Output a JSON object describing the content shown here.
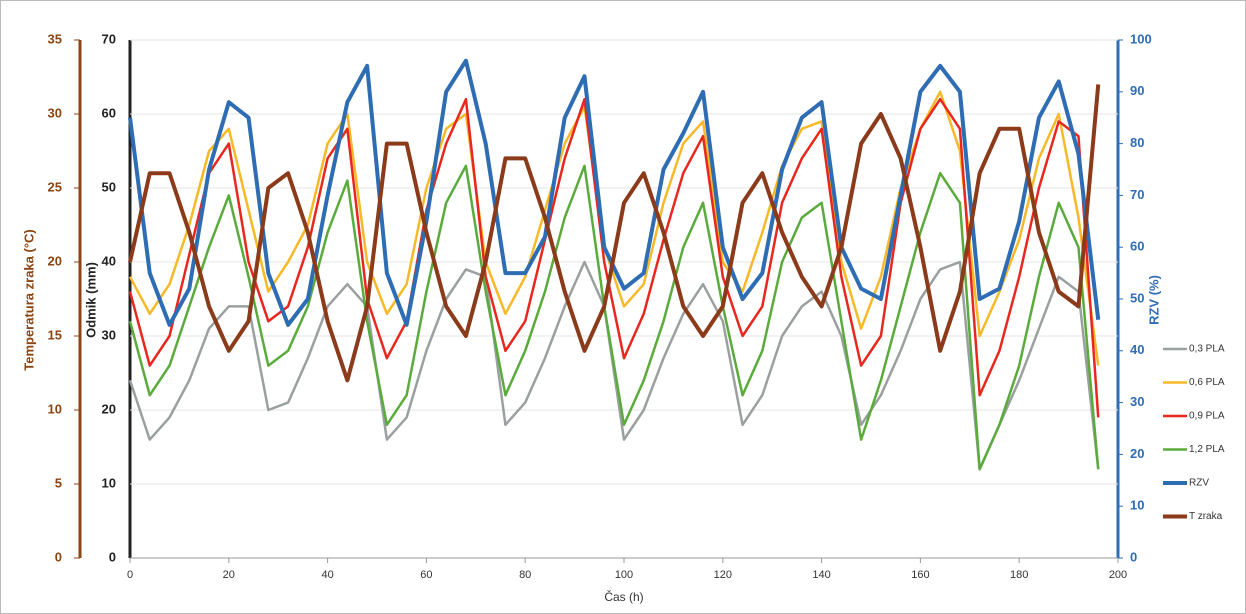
{
  "chart_data": {
    "type": "line",
    "xlabel": "Čas (h)",
    "ylabel": "Odmik (mm)",
    "y2label": "RZV (%)",
    "y3label": "Temperatura zraka  (°C)",
    "xlim": [
      0,
      200
    ],
    "xticks": [
      0,
      20,
      40,
      60,
      80,
      100,
      120,
      140,
      160,
      180,
      200
    ],
    "ylim": [
      0,
      70
    ],
    "yticks": [
      0,
      10,
      20,
      30,
      40,
      50,
      60,
      70
    ],
    "y2lim": [
      0,
      100
    ],
    "y2ticks": [
      0,
      10,
      20,
      30,
      40,
      50,
      60,
      70,
      80,
      90,
      100
    ],
    "y3lim": [
      0,
      35
    ],
    "y3ticks": [
      0,
      5,
      10,
      15,
      20,
      25,
      30,
      35
    ],
    "grid": true,
    "legend": "right",
    "x": [
      0,
      4,
      8,
      12,
      16,
      20,
      24,
      28,
      32,
      36,
      40,
      44,
      48,
      52,
      56,
      60,
      64,
      68,
      72,
      76,
      80,
      84,
      88,
      92,
      96,
      100,
      104,
      108,
      112,
      116,
      120,
      124,
      128,
      132,
      136,
      140,
      144,
      148,
      152,
      156,
      160,
      164,
      168,
      172,
      176,
      180,
      184,
      188,
      192,
      196
    ],
    "series": [
      {
        "name": "0,3 PLA",
        "color": "#9aa0a0",
        "values": [
          24,
          16,
          19,
          24,
          31,
          34,
          34,
          20,
          21,
          27,
          34,
          37,
          34,
          16,
          19,
          28,
          35,
          39,
          38,
          18,
          21,
          27,
          34,
          40,
          34,
          16,
          20,
          27,
          33,
          37,
          32,
          18,
          22,
          30,
          34,
          36,
          30,
          18,
          22,
          28,
          35,
          39,
          40,
          12,
          18,
          24,
          31,
          38,
          36,
          12
        ]
      },
      {
        "name": "0,6 PLA",
        "color": "#f7b928",
        "values": [
          38,
          33,
          37,
          45,
          55,
          58,
          47,
          36,
          40,
          45,
          56,
          60,
          40,
          33,
          37,
          50,
          58,
          60,
          40,
          33,
          38,
          47,
          56,
          61,
          42,
          34,
          37,
          48,
          56,
          59,
          40,
          36,
          44,
          53,
          58,
          59,
          40,
          31,
          38,
          50,
          58,
          63,
          55,
          30,
          36,
          43,
          54,
          60,
          46,
          26
        ]
      },
      {
        "name": "0,9 PLA",
        "color": "#e8281e",
        "values": [
          36,
          26,
          30,
          41,
          52,
          56,
          40,
          32,
          34,
          42,
          54,
          58,
          35,
          27,
          32,
          47,
          56,
          62,
          38,
          28,
          32,
          43,
          54,
          62,
          40,
          27,
          33,
          43,
          52,
          57,
          38,
          30,
          34,
          48,
          54,
          58,
          38,
          26,
          30,
          48,
          58,
          62,
          58,
          22,
          28,
          38,
          50,
          59,
          57,
          19
        ]
      },
      {
        "name": "1,2 PLA",
        "color": "#5aab3c",
        "values": [
          32,
          22,
          26,
          34,
          42,
          49,
          38,
          26,
          28,
          34,
          44,
          51,
          32,
          18,
          22,
          36,
          48,
          53,
          36,
          22,
          28,
          36,
          46,
          53,
          34,
          18,
          24,
          32,
          42,
          48,
          34,
          22,
          28,
          40,
          46,
          48,
          32,
          16,
          24,
          34,
          44,
          52,
          48,
          12,
          18,
          26,
          38,
          48,
          42,
          12
        ]
      },
      {
        "name": "RZV",
        "color": "#2e6db4",
        "axis": "y2",
        "values": [
          85,
          55,
          45,
          52,
          75,
          88,
          85,
          55,
          45,
          50,
          70,
          88,
          95,
          55,
          45,
          65,
          90,
          96,
          80,
          55,
          55,
          62,
          85,
          93,
          60,
          52,
          55,
          75,
          82,
          90,
          60,
          50,
          55,
          75,
          85,
          88,
          60,
          52,
          50,
          70,
          90,
          95,
          90,
          50,
          52,
          65,
          85,
          92,
          78,
          46
        ]
      },
      {
        "name": "T zraka",
        "color": "#8b3a1a",
        "axis": "y3",
        "values": [
          20,
          26,
          26,
          22,
          17,
          14,
          16,
          25,
          26,
          22,
          16,
          12,
          17,
          28,
          28,
          22,
          17,
          15,
          20,
          27,
          27,
          23,
          18,
          14,
          17,
          24,
          26,
          22,
          17,
          15,
          17,
          24,
          26,
          22,
          19,
          17,
          21,
          28,
          30,
          27,
          21,
          14,
          18,
          26,
          29,
          29,
          22,
          18,
          17,
          32
        ]
      }
    ]
  }
}
